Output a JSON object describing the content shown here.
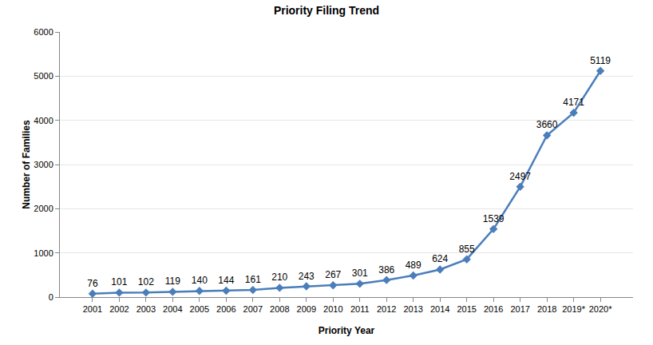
{
  "chart_data": {
    "type": "line",
    "title": "Priority Filing Trend",
    "x_label": "Priority Year",
    "y_label": "Number of Families",
    "categories": [
      "2001",
      "2002",
      "2003",
      "2004",
      "2005",
      "2006",
      "2007",
      "2008",
      "2009",
      "2010",
      "2011",
      "2012",
      "2013",
      "2014",
      "2015",
      "2016",
      "2017",
      "2018",
      "2019*",
      "2020*"
    ],
    "values": [
      76,
      101,
      102,
      119,
      140,
      144,
      161,
      210,
      243,
      267,
      301,
      386,
      489,
      624,
      855,
      1539,
      2497,
      3660,
      4171,
      5119
    ],
    "color": "#4a7ebb",
    "marker": "diamond",
    "ylim": [
      0,
      6000
    ],
    "yticks": [
      0,
      1000,
      2000,
      3000,
      4000,
      5000,
      6000
    ],
    "grid": true,
    "data_labels": true
  }
}
